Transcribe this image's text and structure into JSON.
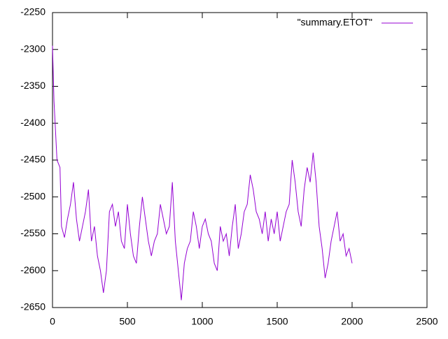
{
  "chart_data": {
    "type": "line",
    "x": [
      0,
      10,
      30,
      50,
      60,
      80,
      100,
      120,
      140,
      160,
      180,
      200,
      220,
      240,
      260,
      280,
      300,
      320,
      340,
      360,
      380,
      400,
      420,
      440,
      460,
      480,
      500,
      520,
      540,
      560,
      580,
      600,
      620,
      640,
      660,
      680,
      700,
      720,
      740,
      760,
      780,
      800,
      820,
      840,
      860,
      880,
      900,
      920,
      940,
      960,
      980,
      1000,
      1020,
      1040,
      1060,
      1080,
      1100,
      1120,
      1140,
      1160,
      1180,
      1200,
      1220,
      1240,
      1260,
      1280,
      1300,
      1320,
      1340,
      1360,
      1380,
      1400,
      1420,
      1440,
      1460,
      1480,
      1500,
      1520,
      1540,
      1560,
      1580,
      1600,
      1620,
      1640,
      1660,
      1680,
      1700,
      1720,
      1740,
      1760,
      1780,
      1800,
      1820,
      1840,
      1860,
      1880,
      1900,
      1920,
      1940,
      1960,
      1980,
      2000
    ],
    "series": [
      {
        "name": "\"summary.ETOT\"",
        "color": "#9400d3",
        "values": [
          -2295,
          -2370,
          -2450,
          -2460,
          -2540,
          -2555,
          -2530,
          -2510,
          -2480,
          -2530,
          -2560,
          -2540,
          -2520,
          -2490,
          -2560,
          -2540,
          -2580,
          -2600,
          -2630,
          -2600,
          -2520,
          -2510,
          -2540,
          -2520,
          -2560,
          -2570,
          -2510,
          -2550,
          -2580,
          -2590,
          -2540,
          -2500,
          -2530,
          -2560,
          -2580,
          -2560,
          -2550,
          -2510,
          -2530,
          -2550,
          -2540,
          -2480,
          -2560,
          -2600,
          -2640,
          -2590,
          -2570,
          -2560,
          -2520,
          -2540,
          -2570,
          -2540,
          -2530,
          -2550,
          -2560,
          -2590,
          -2600,
          -2540,
          -2560,
          -2550,
          -2580,
          -2540,
          -2510,
          -2570,
          -2550,
          -2520,
          -2510,
          -2470,
          -2490,
          -2520,
          -2530,
          -2550,
          -2520,
          -2560,
          -2530,
          -2550,
          -2520,
          -2560,
          -2540,
          -2520,
          -2510,
          -2450,
          -2480,
          -2520,
          -2540,
          -2490,
          -2460,
          -2480,
          -2440,
          -2480,
          -2540,
          -2570,
          -2610,
          -2590,
          -2560,
          -2540,
          -2520,
          -2560,
          -2550,
          -2580,
          -2570,
          -2590
        ]
      }
    ],
    "xlim": [
      0,
      2500
    ],
    "xticks": [
      0,
      500,
      1000,
      1500,
      2000,
      2500
    ],
    "ylim": [
      -2650,
      -2250
    ],
    "yticks": [
      -2650,
      -2600,
      -2550,
      -2500,
      -2450,
      -2400,
      -2350,
      -2300,
      -2250
    ],
    "legend": "top-right"
  }
}
